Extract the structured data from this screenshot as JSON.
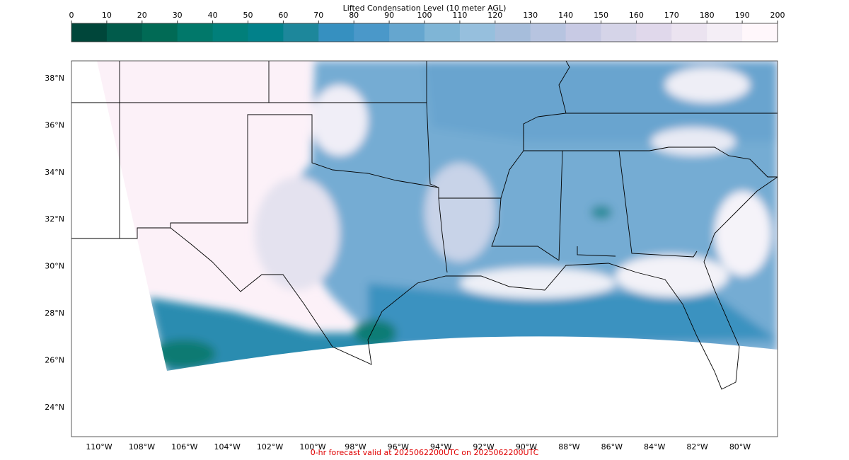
{
  "colorbar": {
    "title": "Lifted Condensation Level (10 meter AGL)",
    "ticks": [
      0,
      10,
      20,
      30,
      40,
      50,
      60,
      70,
      80,
      90,
      100,
      110,
      120,
      130,
      140,
      150,
      160,
      170,
      180,
      190,
      200
    ],
    "colors": [
      "#00463a",
      "#015b4b",
      "#016a55",
      "#01786a",
      "#017f7a",
      "#02818a",
      "#1d879b",
      "#3690c0",
      "#4a98c9",
      "#65a6cf",
      "#7fb5d6",
      "#96bfdd",
      "#a6bddb",
      "#b7c4e0",
      "#c8cae4",
      "#d5d4e8",
      "#e0d8eb",
      "#ebe3f0",
      "#f4eef6",
      "#fff7fb"
    ]
  },
  "map": {
    "lat_ticks": [
      {
        "value": 38,
        "label": "38°N"
      },
      {
        "value": 36,
        "label": "36°N"
      },
      {
        "value": 34,
        "label": "34°N"
      },
      {
        "value": 32,
        "label": "32°N"
      },
      {
        "value": 30,
        "label": "30°N"
      },
      {
        "value": 28,
        "label": "28°N"
      },
      {
        "value": 26,
        "label": "26°N"
      },
      {
        "value": 24,
        "label": "24°N"
      }
    ],
    "lon_ticks": [
      {
        "value": -110,
        "label": "110°W"
      },
      {
        "value": -108,
        "label": "108°W"
      },
      {
        "value": -106,
        "label": "106°W"
      },
      {
        "value": -104,
        "label": "104°W"
      },
      {
        "value": -102,
        "label": "102°W"
      },
      {
        "value": -100,
        "label": "100°W"
      },
      {
        "value": -98,
        "label": "98°W"
      },
      {
        "value": -96,
        "label": "96°W"
      },
      {
        "value": -94,
        "label": "94°W"
      },
      {
        "value": -92,
        "label": "92°W"
      },
      {
        "value": -90,
        "label": "90°W"
      },
      {
        "value": -88,
        "label": "88°W"
      },
      {
        "value": -86,
        "label": "86°W"
      },
      {
        "value": -84,
        "label": "84°W"
      },
      {
        "value": -82,
        "label": "82°W"
      },
      {
        "value": -80,
        "label": "80°W"
      }
    ]
  },
  "footer": "0-hr forecast valid at 2025062200UTC on 2025062200UTC"
}
